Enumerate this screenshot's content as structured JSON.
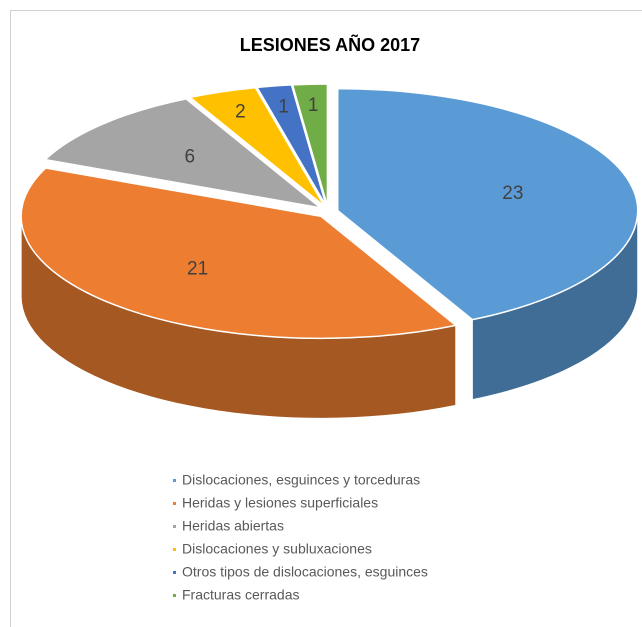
{
  "chart_data": {
    "type": "pie",
    "title": "LESIONES AÑO 2017",
    "categories": [
      "Dislocaciones, esguinces y torceduras",
      "Heridas y lesiones superficiales",
      "Heridas abiertas",
      "Dislocaciones y subluxaciones",
      "Otros tipos de dislocaciones, esguinces",
      "Fracturas cerradas"
    ],
    "values": [
      23,
      21,
      6,
      2,
      1,
      1
    ],
    "colors": [
      "#5b9bd5",
      "#ed7d31",
      "#a5a5a5",
      "#ffc000",
      "#4472c4",
      "#70ad47"
    ]
  }
}
